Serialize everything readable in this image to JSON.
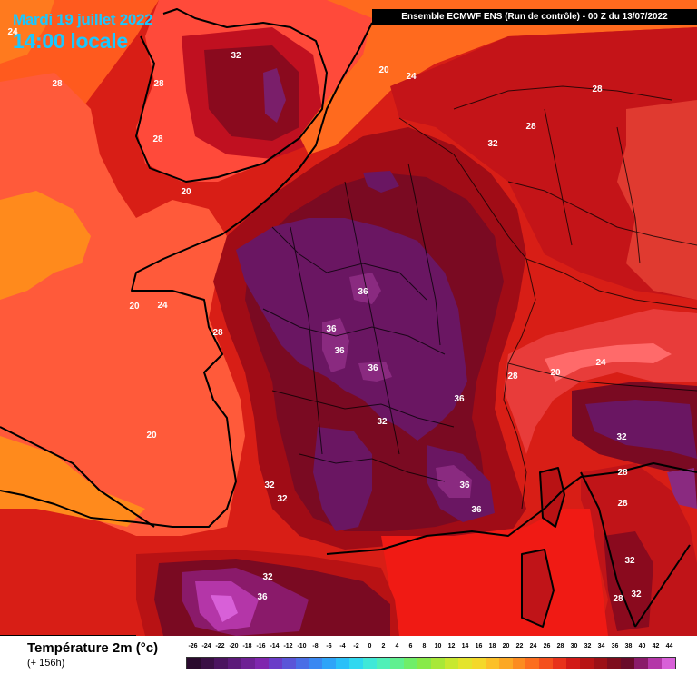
{
  "header": {
    "date": "Mardi 19 juillet 2022",
    "local_time": "14:00 locale",
    "run": "Ensemble ECMWF ENS  (Run de contrôle)  -  00 Z du 13/07/2022"
  },
  "map": {
    "contour_labels": [
      "24",
      "32",
      "28",
      "20",
      "24",
      "28",
      "28",
      "20",
      "28",
      "32",
      "28",
      "20",
      "24",
      "28",
      "36",
      "36",
      "36",
      "36",
      "36",
      "32",
      "20",
      "28",
      "20",
      "24",
      "32",
      "32",
      "28",
      "36",
      "36",
      "28",
      "32",
      "32",
      "36",
      "28",
      "32",
      "32"
    ]
  },
  "legend": {
    "variable": "Température 2m (°c)",
    "lead": "(+ 156h)",
    "scale_values": [
      "-26",
      "-24",
      "-22",
      "-20",
      "-18",
      "-16",
      "-14",
      "-12",
      "-10",
      "-8",
      "-6",
      "-4",
      "-2",
      "0",
      "2",
      "4",
      "6",
      "8",
      "10",
      "12",
      "14",
      "16",
      "18",
      "20",
      "22",
      "24",
      "26",
      "28",
      "30",
      "32",
      "34",
      "36",
      "38",
      "40",
      "42",
      "44"
    ],
    "scale_colors": [
      "#2a0a2e",
      "#3a0f45",
      "#4b1460",
      "#5c1a7a",
      "#6e2094",
      "#7f26ae",
      "#6a3cc8",
      "#5a55d8",
      "#4a6ee6",
      "#3a88f2",
      "#2ea4f8",
      "#2ac0f8",
      "#30d8f0",
      "#40e8d8",
      "#50f0b8",
      "#60f090",
      "#70ee68",
      "#88ea48",
      "#a8e838",
      "#c8e830",
      "#e4e42c",
      "#f4d82a",
      "#fcc028",
      "#fca824",
      "#fc8c20",
      "#fc6e1e",
      "#f4501c",
      "#e8321a",
      "#d21a16",
      "#b81414",
      "#9c1016",
      "#7e0c1c",
      "#6a0a2a",
      "#8a1a6a",
      "#b436a8",
      "#d860d8"
    ]
  }
}
